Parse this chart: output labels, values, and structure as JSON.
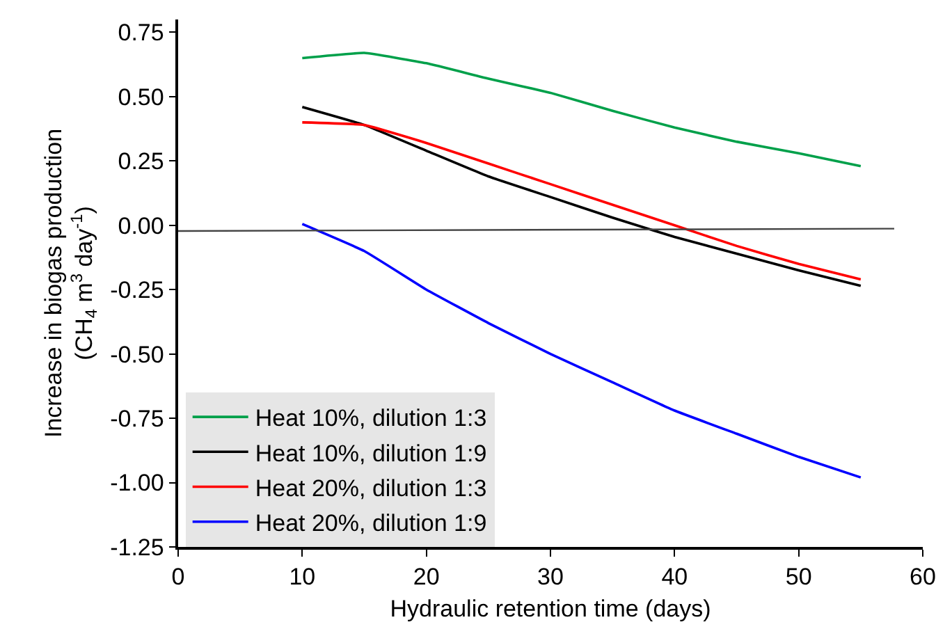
{
  "chart_data": {
    "type": "line",
    "xlabel": "Hydraulic retention time (days)",
    "ylabel": "Increase in biogas production\n(CH$_{4}$ m$^{3}$ day$^{-1}$)",
    "xlim": [
      0,
      60
    ],
    "xticks": [
      0,
      10,
      20,
      30,
      40,
      50,
      60
    ],
    "ylim": [
      -1.25,
      0.8
    ],
    "yticks": [
      {
        "value": 0.75,
        "label": "0.75"
      },
      {
        "value": 0.5,
        "label": "0.50"
      },
      {
        "value": 0.25,
        "label": "0.25"
      },
      {
        "value": 0,
        "label": "0.00"
      },
      {
        "value": -0.25,
        "label": "-0.25"
      },
      {
        "value": -0.5,
        "label": "-0.50"
      },
      {
        "value": -0.75,
        "label": "-0.75"
      },
      {
        "value": -1,
        "label": "-1.00"
      },
      {
        "value": -1.25,
        "label": "-1.25"
      }
    ],
    "x": [
      10,
      15,
      20,
      25,
      30,
      35,
      40,
      45,
      50,
      55
    ],
    "series": [
      {
        "name": "Heat 10%, dilution 1:3",
        "color": "#00a04a",
        "values": [
          0.65,
          0.67,
          0.63,
          0.57,
          0.515,
          0.445,
          0.38,
          0.325,
          0.28,
          0.23
        ]
      },
      {
        "name": "Heat 10%, dilution 1:9",
        "color": "#000000",
        "values": [
          0.46,
          0.39,
          0.29,
          0.19,
          0.11,
          0.03,
          -0.045,
          -0.11,
          -0.175,
          -0.235
        ]
      },
      {
        "name": "Heat 20%, dilution 1:3",
        "color": "#ff0000",
        "values": [
          0.4,
          0.39,
          0.32,
          0.24,
          0.16,
          0.08,
          0.0,
          -0.08,
          -0.15,
          -0.21
        ]
      },
      {
        "name": "Heat 20%, dilution 1:9",
        "color": "#0000ff",
        "values": [
          0.005,
          -0.1,
          -0.25,
          -0.38,
          -0.5,
          -0.61,
          -0.72,
          -0.81,
          -0.9,
          -0.98
        ]
      },
      {
        "color": "#444444",
        "x": [
          0,
          57.7
        ],
        "values": [
          -0.022,
          -0.013
        ]
      }
    ],
    "legend": "bottom left",
    "marker": "none",
    "line_style": "solid"
  }
}
